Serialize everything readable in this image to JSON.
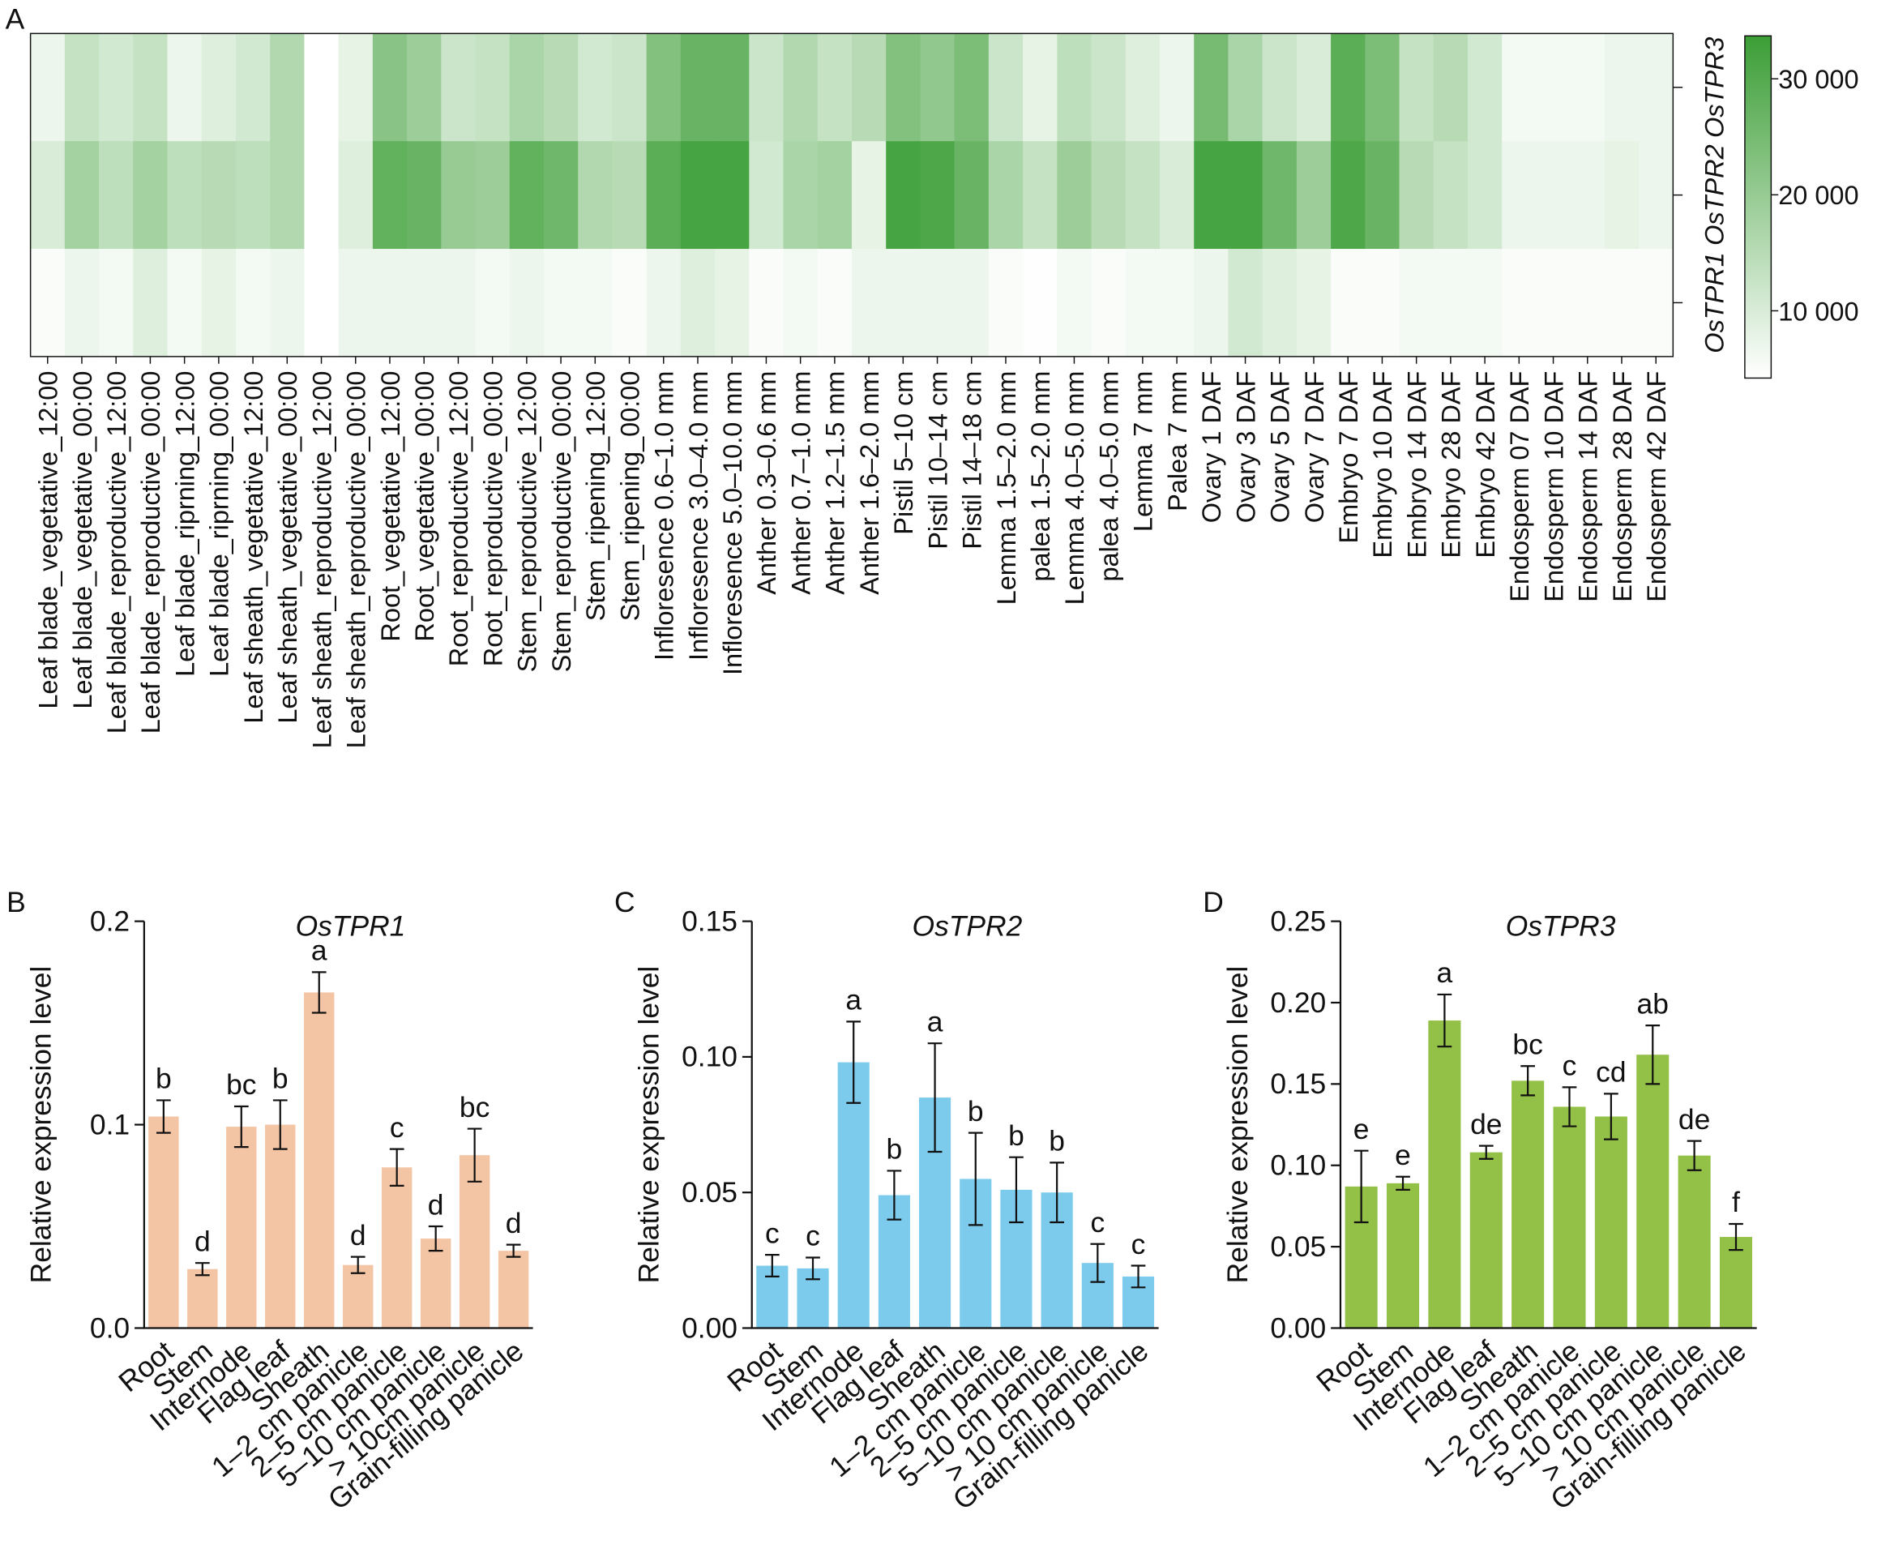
{
  "chart_data": [
    {
      "type": "heatmap",
      "panel": "A",
      "x": [
        "Leaf blade_vegetative_12:00",
        "Leaf blade_vegetative_00:00",
        "Leaf blade_reproductive_12:00",
        "Leaf blade_reproductive_00:00",
        "Leaf blade_riprning_12:00",
        "Leaf blade_riprning_00:00",
        "Leaf sheath_vegetative_12:00",
        "Leaf sheath_vegetative_00:00",
        "Leaf sheath_reproductive_12:00",
        "Leaf sheath_reproductive_00:00",
        "Root_vegetative_12:00",
        "Root_vegetative_00:00",
        "Root_reproductive_12:00",
        "Root_reproductive_00:00",
        "Stem_reproductive_12:00",
        "Stem_reproductive_00:00",
        "Stem_ripening_12:00",
        "Stem_ripening_00:00",
        "Infloresence 0.6–1.0 mm",
        "Infloresence 3.0–4.0 mm",
        "Infloresence 5.0–10.0 mm",
        "Anther 0.3–0.6 mm",
        "Anther 0.7–1.0 mm",
        "Anther 1.2–1.5 mm",
        "Anther 1.6–2.0 mm",
        "Pistil 5–10 cm",
        "Pistil 10–14 cm",
        "Pistil 14–18 cm",
        "Lemma 1.5–2.0 mm",
        "palea 1.5–2.0 mm",
        "Lemma 4.0–5.0 mm",
        "palea 4.0–5.0 mm",
        "Lemma 7 mm",
        "Palea 7 mm",
        "Ovary 1 DAF",
        "Ovary 3 DAF",
        "Ovary 5 DAF",
        "Ovary 7 DAF",
        "Embryo 7 DAF",
        "Embryo 10 DAF",
        "Embryo 14 DAF",
        "Embryo 28 DAF",
        "Embryo 42 DAF",
        "Endosperm 07 DAF",
        "Endosperm 10 DAF",
        "Endosperm 14 DAF",
        "Endosperm 28 DAF",
        "Endosperm 42 DAF"
      ],
      "y": [
        "OsTPR3",
        "OsTPR2",
        "OsTPR1"
      ],
      "values": [
        [
          7000,
          13000,
          11000,
          13000,
          7000,
          9000,
          11000,
          16000,
          4200,
          8000,
          22000,
          19000,
          12000,
          13000,
          17000,
          15000,
          11000,
          12000,
          23000,
          27000,
          27000,
          12000,
          16000,
          13000,
          15000,
          23000,
          21000,
          24000,
          12000,
          8000,
          14000,
          12000,
          9000,
          7000,
          25000,
          17000,
          12000,
          10000,
          29000,
          24000,
          13000,
          15000,
          11000,
          6000,
          6000,
          6000,
          7000,
          7000
        ],
        [
          10000,
          18000,
          14000,
          18000,
          14000,
          15000,
          14000,
          16000,
          4200,
          9000,
          28000,
          27000,
          20000,
          19000,
          28000,
          26000,
          16000,
          15000,
          29000,
          32000,
          32000,
          11000,
          17000,
          18000,
          8000,
          32000,
          31000,
          27000,
          17000,
          13000,
          19000,
          15000,
          13000,
          10000,
          32000,
          32000,
          26000,
          19000,
          31000,
          27000,
          15000,
          13000,
          11000,
          7000,
          7000,
          7000,
          8000,
          7000
        ],
        [
          5000,
          7000,
          6000,
          9000,
          6000,
          8000,
          6000,
          7000,
          4200,
          7000,
          7000,
          7000,
          7000,
          6000,
          7000,
          6000,
          6000,
          5000,
          7000,
          9000,
          8000,
          5000,
          6000,
          5000,
          7000,
          7000,
          7000,
          7000,
          5000,
          4500,
          6000,
          5000,
          6000,
          6000,
          7000,
          11000,
          9000,
          8000,
          5000,
          5000,
          6000,
          6000,
          6000,
          5000,
          5000,
          5000,
          5000,
          5000
        ]
      ],
      "colormap": [
        "#ffffff",
        "#3c9e36"
      ],
      "clim": [
        4200,
        33700
      ],
      "cticks": [
        {
          "value": 10000,
          "label": "10 000"
        },
        {
          "value": 20000,
          "label": "20 000"
        },
        {
          "value": 30000,
          "label": "30 000"
        }
      ]
    },
    {
      "type": "bar",
      "panel": "B",
      "title": "OsTPR1",
      "ylabel": "Relative expression level",
      "categories": [
        "Root",
        "Stem",
        "Internode",
        "Flag leaf",
        "Sheath",
        "1–2 cm panicle",
        "2–5 cm panicle",
        "5–10 cm panicle",
        "> 10cm panicle",
        "Grain-filling panicle"
      ],
      "values": [
        0.104,
        0.029,
        0.099,
        0.1,
        0.165,
        0.031,
        0.079,
        0.044,
        0.085,
        0.038
      ],
      "errors": [
        0.008,
        0.003,
        0.01,
        0.012,
        0.01,
        0.004,
        0.009,
        0.006,
        0.013,
        0.003
      ],
      "letters": [
        "b",
        "d",
        "bc",
        "b",
        "a",
        "d",
        "c",
        "d",
        "bc",
        "d"
      ],
      "color": "#f4c5a4",
      "ylim": [
        0,
        0.2
      ],
      "yticks": [
        {
          "value": 0,
          "label": "0.0"
        },
        0.1,
        0.2
      ]
    },
    {
      "type": "bar",
      "panel": "C",
      "title": "OsTPR2",
      "ylabel": "Relative expression level",
      "categories": [
        "Root",
        "Stem",
        "Internode",
        "Flag leaf",
        "Sheath",
        "1–2 cm panicle",
        "2–5 cm panicle",
        "5–10 cm panicle",
        "> 10 cm panicle",
        "Grain-filling panicle"
      ],
      "values": [
        0.023,
        0.022,
        0.098,
        0.049,
        0.085,
        0.055,
        0.051,
        0.05,
        0.024,
        0.019
      ],
      "errors": [
        0.004,
        0.004,
        0.015,
        0.009,
        0.02,
        0.017,
        0.012,
        0.011,
        0.007,
        0.004
      ],
      "letters": [
        "c",
        "c",
        "a",
        "b",
        "a",
        "b",
        "b",
        "b",
        "c",
        "c"
      ],
      "color": "#7ccbec",
      "ylim": [
        0,
        0.15
      ],
      "yticks": [
        {
          "value": 0,
          "label": "0.00"
        },
        0.05,
        {
          "value": 0.1,
          "label": "0.10"
        },
        0.15
      ]
    },
    {
      "type": "bar",
      "panel": "D",
      "title": "OsTPR3",
      "ylabel": "Relative expression level",
      "categories": [
        "Root",
        "Stem",
        "Internode",
        "Flag leaf",
        "Sheath",
        "1–2 cm panicle",
        "2–5 cm panicle",
        "5–10 cm panicle",
        "> 10 cm panicle",
        "Grain-filling panicle"
      ],
      "values": [
        0.087,
        0.089,
        0.189,
        0.108,
        0.152,
        0.136,
        0.13,
        0.168,
        0.106,
        0.056
      ],
      "errors": [
        0.022,
        0.004,
        0.016,
        0.004,
        0.009,
        0.012,
        0.014,
        0.018,
        0.009,
        0.008
      ],
      "letters": [
        "e",
        "e",
        "a",
        "de",
        "bc",
        "c",
        "cd",
        "ab",
        "de",
        "f"
      ],
      "color": "#93c047",
      "ylim": [
        0,
        0.25
      ],
      "yticks": [
        {
          "value": 0,
          "label": "0.00"
        },
        0.05,
        {
          "value": 0.1,
          "label": "0.10"
        },
        0.15,
        {
          "value": 0.2,
          "label": "0.20"
        },
        0.25
      ]
    }
  ]
}
